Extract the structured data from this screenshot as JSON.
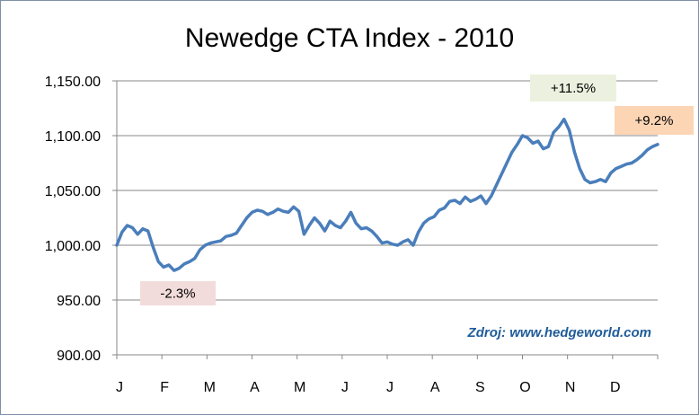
{
  "chart_data": {
    "type": "line",
    "title": "Newedge CTA Index - 2010",
    "xlabel": "",
    "ylabel": "",
    "ylim": [
      900,
      1150
    ],
    "yticks": [
      "1,150.00",
      "1,100.00",
      "1,050.00",
      "1,000.00",
      "950.00",
      "900.00"
    ],
    "ytick_values": [
      1150,
      1100,
      1050,
      1000,
      950,
      900
    ],
    "xticks": [
      "J",
      "F",
      "M",
      "A",
      "M",
      "J",
      "J",
      "A",
      "S",
      "O",
      "N",
      "D"
    ],
    "grid": "horizontal",
    "line_color": "#4a7ebb",
    "series": [
      {
        "values": [
          1000,
          1012,
          1018,
          1016,
          1010,
          1015,
          1013,
          998,
          985,
          980,
          982,
          977,
          979,
          983,
          985,
          988,
          996,
          1000,
          1002,
          1003,
          1004,
          1008,
          1009,
          1011,
          1018,
          1025,
          1030,
          1032,
          1031,
          1028,
          1030,
          1033,
          1031,
          1030,
          1035,
          1031,
          1010,
          1018,
          1025,
          1020,
          1013,
          1022,
          1018,
          1016,
          1022,
          1030,
          1020,
          1015,
          1016,
          1013,
          1008,
          1002,
          1003,
          1001,
          1000,
          1003,
          1005,
          1000,
          1012,
          1020,
          1024,
          1026,
          1032,
          1034,
          1040,
          1041,
          1038,
          1044,
          1040,
          1042,
          1045,
          1038,
          1045,
          1055,
          1065,
          1075,
          1085,
          1092,
          1100,
          1098,
          1093,
          1095,
          1088,
          1090,
          1103,
          1108,
          1115,
          1105,
          1085,
          1070,
          1060,
          1057,
          1058,
          1060,
          1058,
          1066,
          1070,
          1072,
          1074,
          1075,
          1078,
          1082,
          1087,
          1090,
          1092
        ]
      }
    ],
    "annotations": [
      {
        "text": "+11.5%",
        "color": "#ebf1de"
      },
      {
        "text": "+9.2%",
        "color": "#fcd5b5"
      },
      {
        "text": "-2.3%",
        "color": "#f2dcdb"
      }
    ]
  },
  "source_note": "Zdroj: www.hedgeworld.com"
}
